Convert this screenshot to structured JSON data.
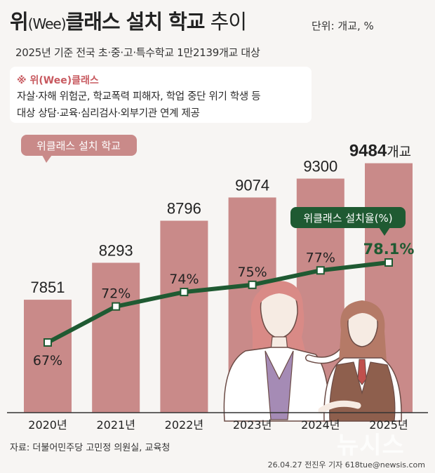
{
  "title": {
    "main_pre": "위",
    "main_wee": "(Wee)",
    "main_post": "클래스 설치 학교",
    "trend": " 추이"
  },
  "unit": "단위: 개교, %",
  "subtitle": "2025년 기준 전국 초·중·고·특수학교 1만2139개교 대상",
  "definition": {
    "title": "※ 위(Wee)클래스",
    "line1": "자살·자해 위험군, 학교폭력 피해자, 학업 중단 위기 학생 등",
    "line2": "대상 상담·교육·심리검사·외부기관 연계 제공"
  },
  "source": "자료: 더불어민주당 고민정 의원실, 교육청",
  "credit": "26.04.27 전진우 기자 618tue@newsis.com",
  "watermark": "뉴시스",
  "colors": {
    "bar": "#c98a89",
    "line": "#1f5a32",
    "highlight": "#1f5a32",
    "label_bg": "#c98a89"
  },
  "chart_data": {
    "type": "bar",
    "categories": [
      "2020년",
      "2021년",
      "2022년",
      "2023년",
      "2024년",
      "2025년"
    ],
    "series": [
      {
        "name": "위클래스 설치 학교",
        "kind": "bar",
        "unit": "개교",
        "values": [
          7851,
          8293,
          8796,
          9074,
          9300,
          9484
        ],
        "labels": [
          "7851",
          "8293",
          "8796",
          "9074",
          "9300",
          "9484"
        ]
      },
      {
        "name": "위클래스 설치율(%)",
        "kind": "line",
        "unit": "%",
        "values": [
          67,
          72,
          74,
          75,
          77,
          78.1
        ],
        "labels": [
          "67%",
          "72%",
          "74%",
          "75%",
          "77%",
          "78.1%"
        ]
      }
    ],
    "highlight_suffix": "개교"
  }
}
